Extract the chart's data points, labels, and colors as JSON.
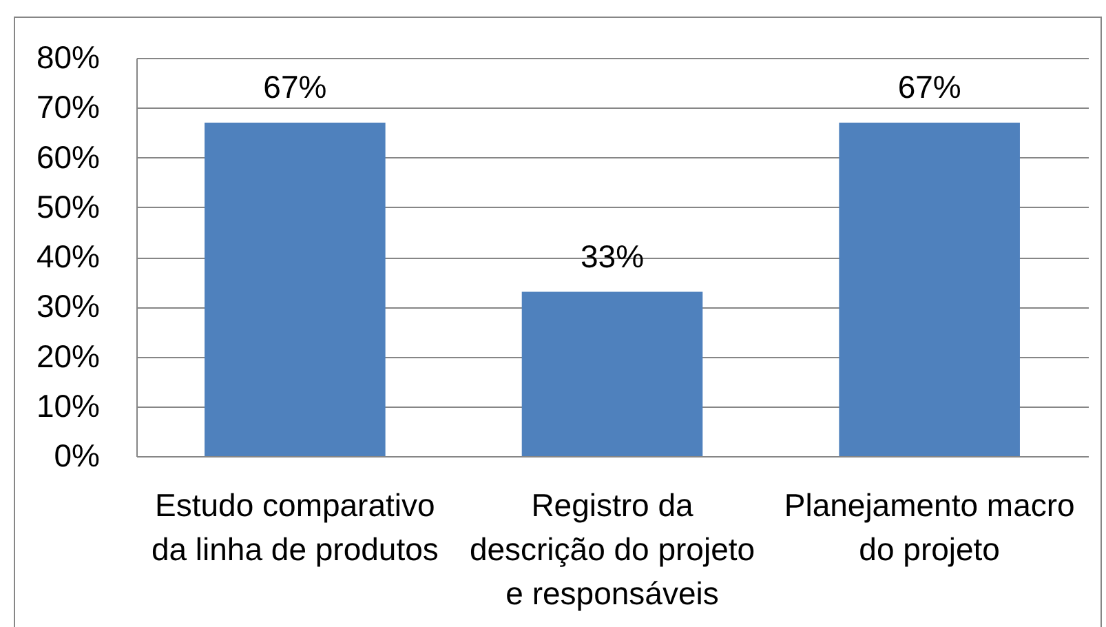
{
  "chart_data": {
    "type": "bar",
    "categories": [
      "Estudo comparativo\nda linha de produtos",
      "Registro da\ndescrição do projeto\ne responsáveis",
      "Planejamento macro\ndo projeto"
    ],
    "values": [
      67,
      33,
      67
    ],
    "color": "#4f81bd",
    "value_labels": [
      "67%",
      "33%",
      "67%"
    ],
    "ylim": [
      0,
      80
    ],
    "yticks": [
      {
        "value": 0,
        "label": "0%"
      },
      {
        "value": 10,
        "label": "10%"
      },
      {
        "value": 20,
        "label": "20%"
      },
      {
        "value": 30,
        "label": "30%"
      },
      {
        "value": 40,
        "label": "40%"
      },
      {
        "value": 50,
        "label": "50%"
      },
      {
        "value": 60,
        "label": "60%"
      },
      {
        "value": 70,
        "label": "70%"
      },
      {
        "value": 80,
        "label": "80%"
      }
    ],
    "grid": "y"
  }
}
